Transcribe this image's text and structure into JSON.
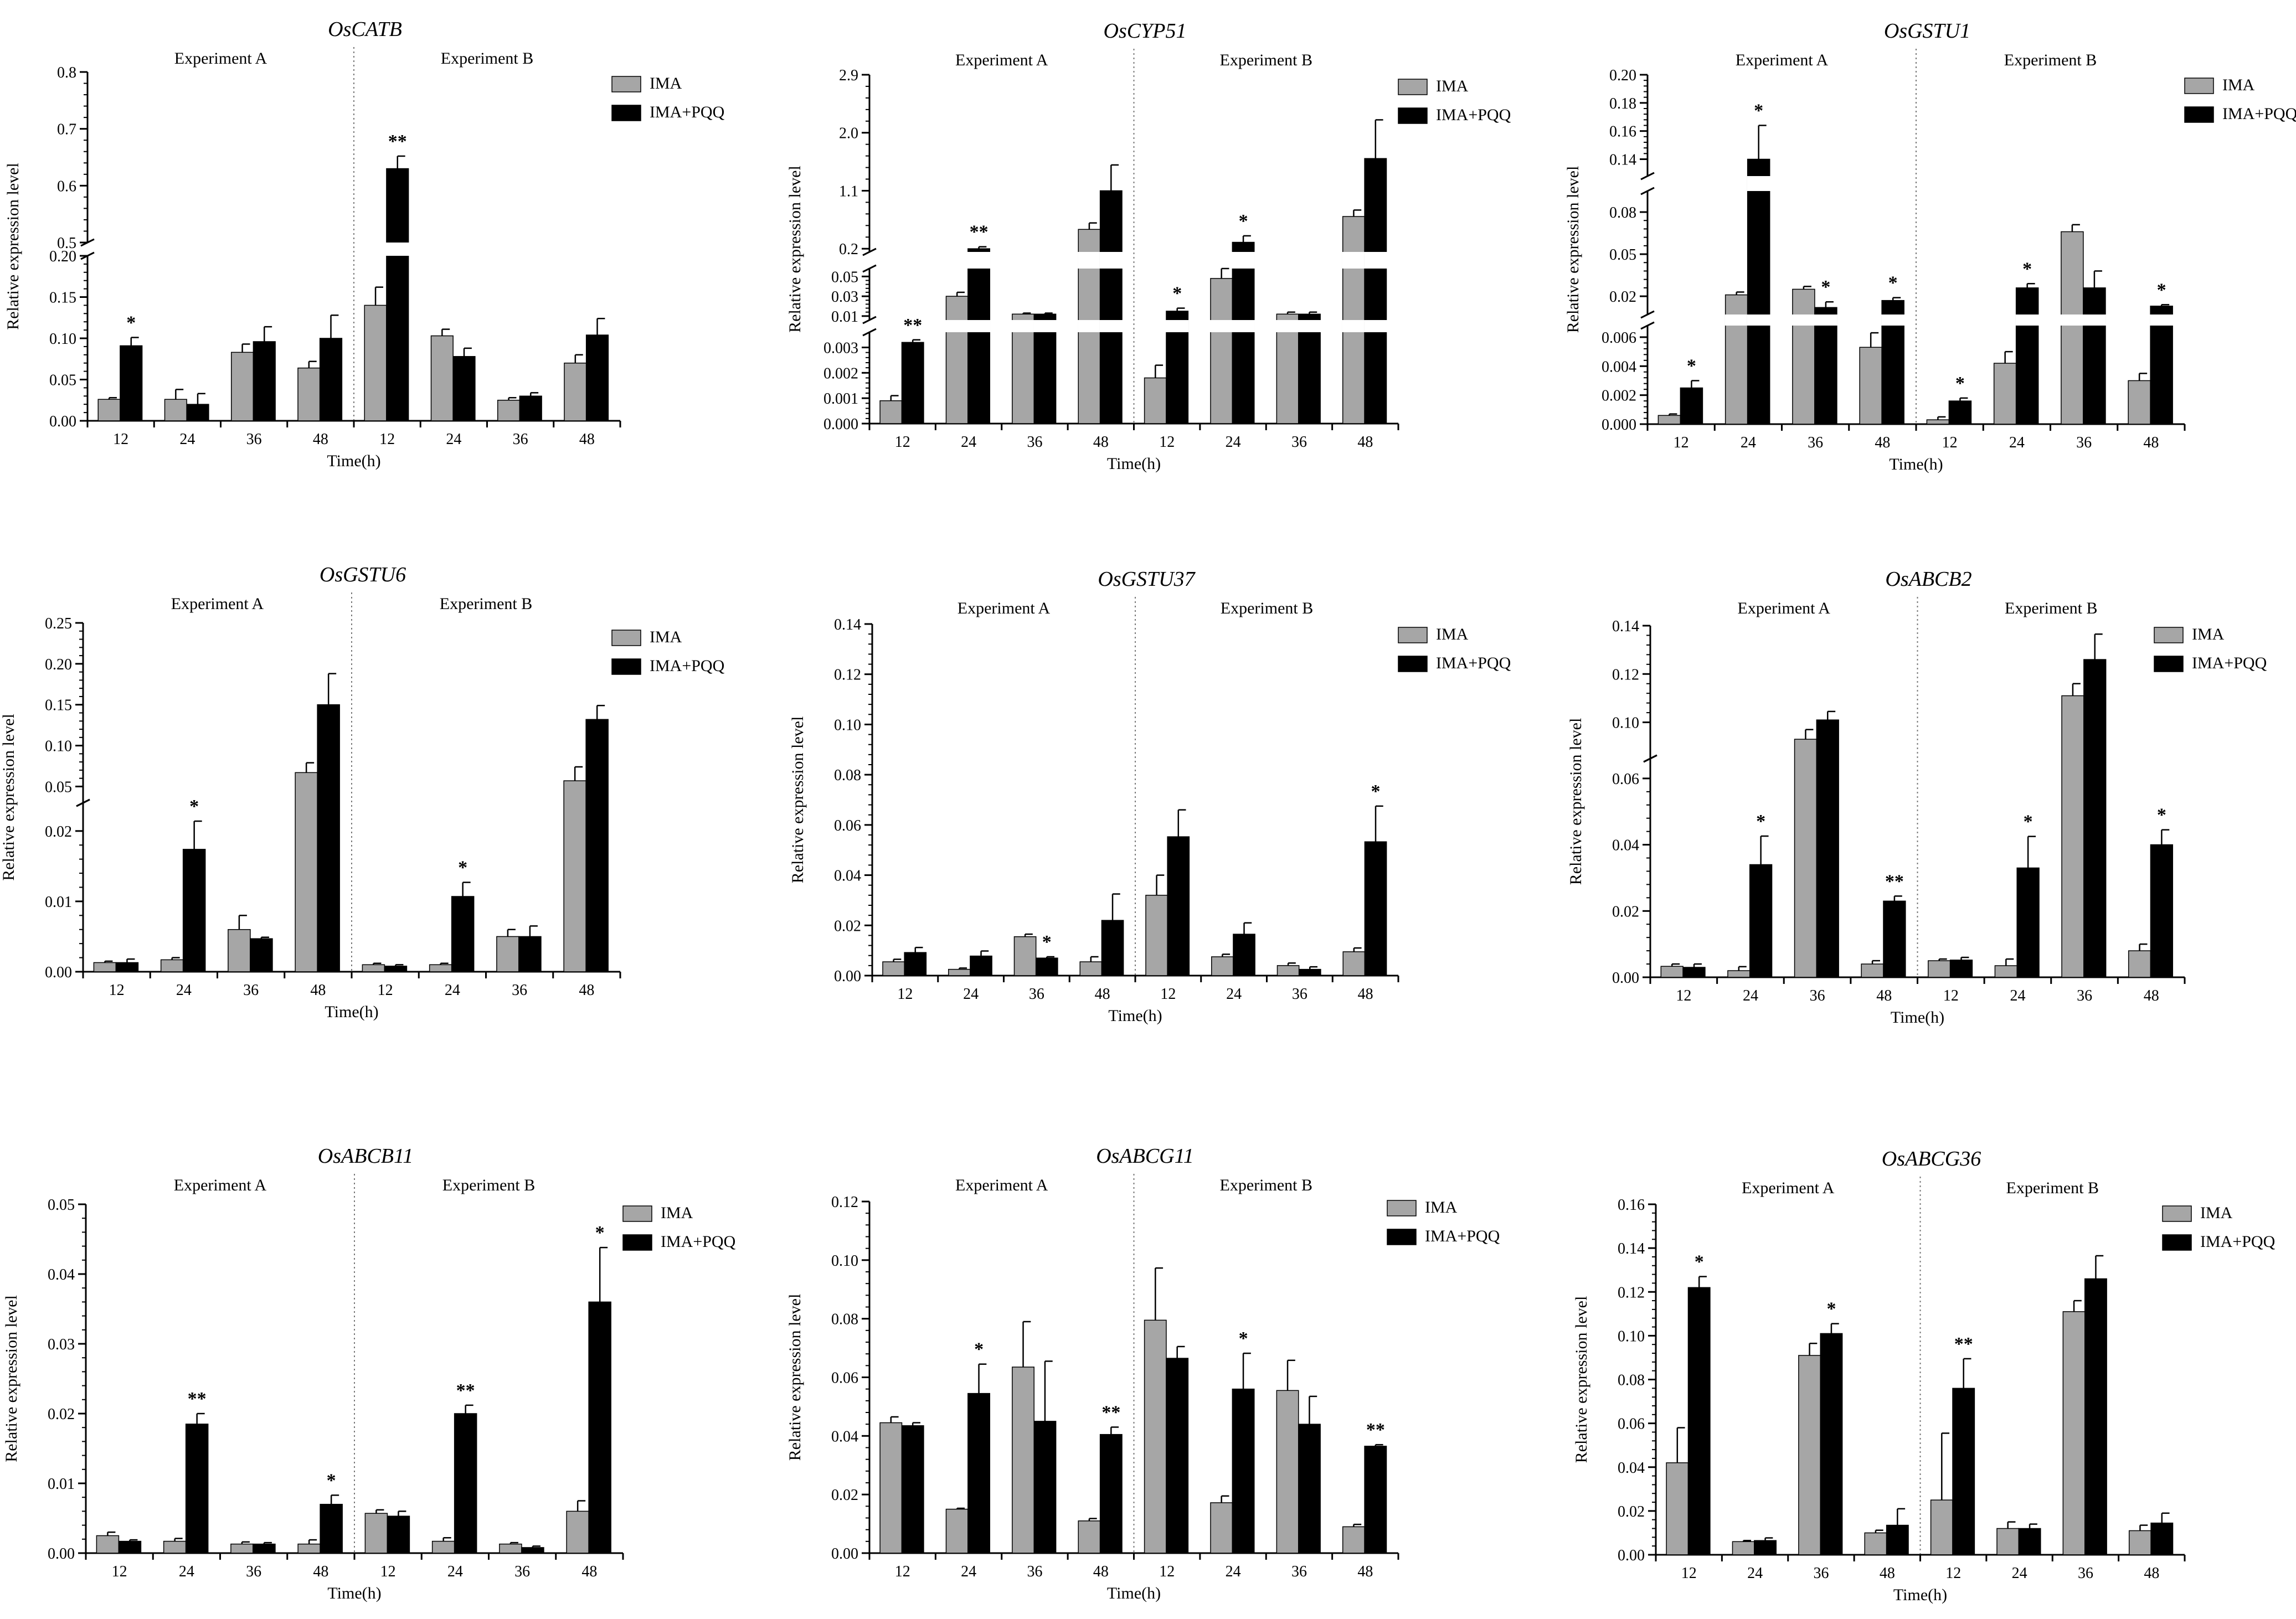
{
  "figure": {
    "ylabel": "Relative expression level",
    "xlabel": "Time(h)",
    "exp_labels": [
      "Experiment A",
      "Experiment B"
    ],
    "legend": [
      "IMA",
      "IMA+PQQ"
    ],
    "colors": {
      "IMA": "#a6a6a6",
      "IMA+PQQ": "#000000"
    }
  },
  "chart_data": [
    {
      "type": "bar",
      "title": "OsCATB",
      "categories": [
        "12",
        "24",
        "36",
        "48",
        "12",
        "24",
        "36",
        "48"
      ],
      "series": [
        {
          "name": "IMA",
          "values": [
            0.026,
            0.026,
            0.083,
            0.064,
            0.14,
            0.103,
            0.025,
            0.07
          ],
          "errors": [
            0.002,
            0.012,
            0.01,
            0.008,
            0.022,
            0.008,
            0.003,
            0.01
          ]
        },
        {
          "name": "IMA+PQQ",
          "values": [
            0.091,
            0.02,
            0.096,
            0.1,
            0.63,
            0.078,
            0.03,
            0.104
          ],
          "errors": [
            0.01,
            0.013,
            0.018,
            0.028,
            0.022,
            0.01,
            0.004,
            0.02
          ]
        }
      ],
      "significance": {
        "IMA+PQQ": [
          "*",
          "",
          "",
          "",
          "**",
          "",
          "",
          ""
        ]
      },
      "ylim": [
        0,
        0.8
      ],
      "axis_segments": [
        {
          "range": [
            0,
            0.2
          ],
          "ticks": [
            0,
            0.05,
            0.1,
            0.15,
            0.2
          ],
          "labels": [
            "0.00",
            "0.05",
            "0.10",
            "0.15",
            "0.20"
          ]
        },
        {
          "range": [
            0.5,
            0.8
          ],
          "ticks": [
            0.5,
            0.6,
            0.7,
            0.8
          ],
          "labels": [
            "0.5",
            "0.6",
            "0.7",
            "0.8"
          ]
        }
      ]
    },
    {
      "type": "bar",
      "title": "OsCYP51",
      "categories": [
        "12",
        "24",
        "36",
        "48",
        "12",
        "24",
        "36",
        "48"
      ],
      "series": [
        {
          "name": "IMA",
          "values": [
            0.0009,
            0.03,
            0.012,
            0.5,
            0.0018,
            0.048,
            0.012,
            0.7
          ],
          "errors": [
            0.0002,
            0.004,
            0.001,
            0.1,
            0.0005,
            0.012,
            0.002,
            0.1
          ]
        },
        {
          "name": "IMA+PQQ",
          "values": [
            0.0032,
            0.2,
            0.012,
            1.1,
            0.015,
            0.3,
            0.012,
            1.6
          ],
          "errors": [
            0.0001,
            0.03,
            0.001,
            0.4,
            0.003,
            0.1,
            0.002,
            0.6
          ]
        }
      ],
      "significance": {
        "IMA+PQQ": [
          "**",
          "**",
          "",
          "",
          "*",
          "*",
          "",
          ""
        ]
      },
      "axis_segments": [
        {
          "range": [
            0,
            0.0036
          ],
          "ticks": [
            0,
            0.001,
            0.002,
            0.003
          ],
          "labels": [
            "0.000",
            "0.001",
            "0.002",
            "0.003"
          ]
        },
        {
          "range": [
            0.006,
            0.058
          ],
          "ticks": [
            0.01,
            0.03,
            0.05
          ],
          "labels": [
            "0.01",
            "0.03",
            "0.05"
          ]
        },
        {
          "range": [
            0.15,
            2.9
          ],
          "ticks": [
            0.2,
            1.1,
            2.0,
            2.9
          ],
          "labels": [
            "0.2",
            "1.1",
            "2.0",
            "2.9"
          ]
        }
      ]
    },
    {
      "type": "bar",
      "title": "OsGSTU1",
      "categories": [
        "12",
        "24",
        "36",
        "48",
        "12",
        "24",
        "36",
        "48"
      ],
      "series": [
        {
          "name": "IMA",
          "values": [
            0.0006,
            0.021,
            0.025,
            0.0053,
            0.0003,
            0.0042,
            0.066,
            0.003
          ],
          "errors": [
            0.0001,
            0.002,
            0.002,
            0.001,
            0.0002,
            0.0008,
            0.005,
            0.0005
          ]
        },
        {
          "name": "IMA+PQQ",
          "values": [
            0.0025,
            0.14,
            0.012,
            0.017,
            0.0016,
            0.026,
            0.026,
            0.013
          ],
          "errors": [
            0.0005,
            0.024,
            0.004,
            0.002,
            0.0002,
            0.003,
            0.012,
            0.001
          ]
        }
      ],
      "significance": {
        "IMA+PQQ": [
          "*",
          "*",
          "*",
          "*",
          "*",
          "*",
          "",
          "*"
        ]
      },
      "axis_segments": [
        {
          "range": [
            0,
            0.0068
          ],
          "ticks": [
            0,
            0.002,
            0.004,
            0.006
          ],
          "labels": [
            "0.000",
            "0.002",
            "0.004",
            "0.006"
          ]
        },
        {
          "range": [
            0.007,
            0.095
          ],
          "ticks": [
            0.02,
            0.05,
            0.08
          ],
          "labels": [
            "0.02",
            "0.05",
            "0.08"
          ]
        },
        {
          "range": [
            0.128,
            0.2
          ],
          "ticks": [
            0.14,
            0.16,
            0.18,
            0.2
          ],
          "labels": [
            "0.14",
            "0.16",
            "0.18",
            "0.20"
          ]
        }
      ]
    },
    {
      "type": "bar",
      "title": "OsGSTU6",
      "categories": [
        "12",
        "24",
        "36",
        "48",
        "12",
        "24",
        "36",
        "48"
      ],
      "series": [
        {
          "name": "IMA",
          "values": [
            0.0013,
            0.0017,
            0.006,
            0.067,
            0.001,
            0.001,
            0.005,
            0.057
          ],
          "errors": [
            0.0002,
            0.0003,
            0.002,
            0.012,
            0.0002,
            0.0002,
            0.001,
            0.017
          ]
        },
        {
          "name": "IMA+PQQ",
          "values": [
            0.0013,
            0.0174,
            0.0047,
            0.15,
            0.0008,
            0.0107,
            0.005,
            0.132
          ],
          "errors": [
            0.0005,
            0.004,
            0.0002,
            0.038,
            0.0002,
            0.002,
            0.0015,
            0.017
          ]
        }
      ],
      "significance": {
        "IMA+PQQ": [
          "",
          "*",
          "",
          "",
          "",
          "*",
          "",
          ""
        ]
      },
      "axis_segments": [
        {
          "range": [
            0,
            0.024
          ],
          "ticks": [
            0,
            0.01,
            0.02
          ],
          "labels": [
            "0.00",
            "0.01",
            "0.02"
          ]
        },
        {
          "range": [
            0.03,
            0.25
          ],
          "ticks": [
            0.05,
            0.1,
            0.15,
            0.2,
            0.25
          ],
          "labels": [
            "0.05",
            "0.10",
            "0.15",
            "0.20",
            "0.25"
          ]
        }
      ]
    },
    {
      "type": "bar",
      "title": "OsGSTU37",
      "categories": [
        "12",
        "24",
        "36",
        "48",
        "12",
        "24",
        "36",
        "48"
      ],
      "series": [
        {
          "name": "IMA",
          "values": [
            0.0055,
            0.0025,
            0.0155,
            0.0055,
            0.032,
            0.0075,
            0.004,
            0.0095
          ],
          "errors": [
            0.001,
            0.0005,
            0.001,
            0.002,
            0.008,
            0.001,
            0.001,
            0.0015
          ]
        },
        {
          "name": "IMA+PQQ",
          "values": [
            0.0092,
            0.0078,
            0.007,
            0.022,
            0.0553,
            0.0165,
            0.0025,
            0.0533
          ],
          "errors": [
            0.002,
            0.002,
            0.0005,
            0.0105,
            0.0107,
            0.0045,
            0.001,
            0.0142
          ]
        }
      ],
      "significance": {
        "IMA+PQQ": [
          "",
          "",
          "*",
          "",
          "",
          "",
          "",
          "*"
        ]
      },
      "ylim": [
        0,
        0.14
      ],
      "axis_segments": [
        {
          "range": [
            0,
            0.14
          ],
          "ticks": [
            0,
            0.02,
            0.04,
            0.06,
            0.08,
            0.1,
            0.12,
            0.14
          ],
          "labels": [
            "0.00",
            "0.02",
            "0.04",
            "0.06",
            "0.08",
            "0.10",
            "0.12",
            "0.14"
          ]
        }
      ]
    },
    {
      "type": "bar",
      "title": "OsABCB2",
      "categories": [
        "12",
        "24",
        "36",
        "48",
        "12",
        "24",
        "36",
        "48"
      ],
      "series": [
        {
          "name": "IMA",
          "values": [
            0.0033,
            0.002,
            0.093,
            0.004,
            0.005,
            0.0035,
            0.111,
            0.008
          ],
          "errors": [
            0.0007,
            0.0012,
            0.004,
            0.001,
            0.0005,
            0.002,
            0.005,
            0.002
          ]
        },
        {
          "name": "IMA+PQQ",
          "values": [
            0.003,
            0.034,
            0.101,
            0.023,
            0.0052,
            0.033,
            0.126,
            0.04
          ],
          "errors": [
            0.001,
            0.0086,
            0.0035,
            0.0015,
            0.0008,
            0.0095,
            0.0105,
            0.0045
          ]
        }
      ],
      "significance": {
        "IMA+PQQ": [
          "",
          "*",
          "",
          "**",
          "",
          "*",
          "",
          "*"
        ]
      },
      "axis_segments": [
        {
          "range": [
            0,
            0.066
          ],
          "ticks": [
            0,
            0.02,
            0.04,
            0.06
          ],
          "labels": [
            "0.00",
            "0.02",
            "0.04",
            "0.06"
          ]
        },
        {
          "range": [
            0.085,
            0.14
          ],
          "ticks": [
            0.1,
            0.12,
            0.14
          ],
          "labels": [
            "0.10",
            "0.12",
            "0.14"
          ]
        }
      ]
    },
    {
      "type": "bar",
      "title": "OsABCB11",
      "categories": [
        "12",
        "24",
        "36",
        "48",
        "12",
        "24",
        "36",
        "48"
      ],
      "series": [
        {
          "name": "IMA",
          "values": [
            0.0025,
            0.0017,
            0.0013,
            0.0013,
            0.0057,
            0.0017,
            0.0013,
            0.006
          ],
          "errors": [
            0.0005,
            0.0004,
            0.0003,
            0.0006,
            0.0005,
            0.0005,
            0.0002,
            0.0015
          ]
        },
        {
          "name": "IMA+PQQ",
          "values": [
            0.0017,
            0.0185,
            0.0013,
            0.007,
            0.0053,
            0.02,
            0.0008,
            0.036
          ],
          "errors": [
            0.0002,
            0.0015,
            0.0002,
            0.0013,
            0.0007,
            0.0012,
            0.0002,
            0.0078
          ]
        }
      ],
      "significance": {
        "IMA+PQQ": [
          "",
          "**",
          "",
          "*",
          "",
          "**",
          "",
          "*"
        ]
      },
      "ylim": [
        0,
        0.05
      ],
      "axis_segments": [
        {
          "range": [
            0,
            0.05
          ],
          "ticks": [
            0,
            0.01,
            0.02,
            0.03,
            0.04,
            0.05
          ],
          "labels": [
            "0.00",
            "0.01",
            "0.02",
            "0.03",
            "0.04",
            "0.05"
          ]
        }
      ]
    },
    {
      "type": "bar",
      "title": "OsABCG11",
      "categories": [
        "12",
        "24",
        "36",
        "48",
        "12",
        "24",
        "36",
        "48"
      ],
      "series": [
        {
          "name": "IMA",
          "values": [
            0.0445,
            0.015,
            0.0635,
            0.011,
            0.0795,
            0.0172,
            0.0555,
            0.009
          ],
          "errors": [
            0.002,
            0.0003,
            0.0155,
            0.0008,
            0.0178,
            0.0023,
            0.0103,
            0.0008
          ]
        },
        {
          "name": "IMA+PQQ",
          "values": [
            0.0435,
            0.0545,
            0.045,
            0.0405,
            0.0665,
            0.056,
            0.044,
            0.0365
          ],
          "errors": [
            0.001,
            0.01,
            0.0205,
            0.0025,
            0.004,
            0.0122,
            0.0095,
            0.0005
          ]
        }
      ],
      "significance": {
        "IMA+PQQ": [
          "",
          "*",
          "",
          "**",
          "",
          "*",
          "",
          "**"
        ]
      },
      "ylim": [
        0,
        0.12
      ],
      "axis_segments": [
        {
          "range": [
            0,
            0.12
          ],
          "ticks": [
            0,
            0.02,
            0.04,
            0.06,
            0.08,
            0.1,
            0.12
          ],
          "labels": [
            "0.00",
            "0.02",
            "0.04",
            "0.06",
            "0.08",
            "0.10",
            "0.12"
          ]
        }
      ]
    },
    {
      "type": "bar",
      "title": "OsABCG36",
      "categories": [
        "12",
        "24",
        "36",
        "48",
        "12",
        "24",
        "36",
        "48"
      ],
      "series": [
        {
          "name": "IMA",
          "values": [
            0.042,
            0.006,
            0.091,
            0.01,
            0.025,
            0.012,
            0.111,
            0.011
          ],
          "errors": [
            0.016,
            0.0005,
            0.0055,
            0.0012,
            0.0305,
            0.003,
            0.005,
            0.0025
          ]
        },
        {
          "name": "IMA+PQQ",
          "values": [
            0.122,
            0.0065,
            0.101,
            0.0135,
            0.076,
            0.012,
            0.126,
            0.0145
          ],
          "errors": [
            0.005,
            0.0012,
            0.0045,
            0.0075,
            0.0135,
            0.002,
            0.0105,
            0.0045
          ]
        }
      ],
      "significance": {
        "IMA+PQQ": [
          "*",
          "",
          "*",
          "",
          "**",
          "",
          "",
          ""
        ]
      },
      "ylim": [
        0,
        0.16
      ],
      "axis_segments": [
        {
          "range": [
            0,
            0.16
          ],
          "ticks": [
            0,
            0.02,
            0.04,
            0.06,
            0.08,
            0.1,
            0.12,
            0.14,
            0.16
          ],
          "labels": [
            "0.00",
            "0.02",
            "0.04",
            "0.06",
            "0.08",
            "0.10",
            "0.12",
            "0.14",
            "0.16"
          ]
        }
      ]
    }
  ]
}
